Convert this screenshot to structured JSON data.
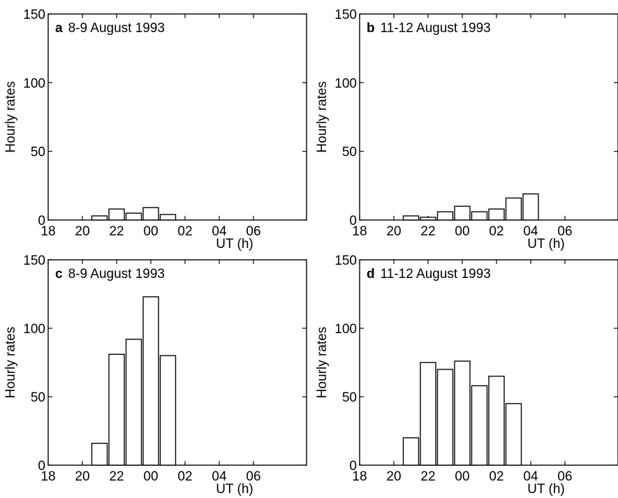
{
  "chart_data": [
    {
      "type": "bar",
      "panel_letter": "a",
      "title": "8-9 August 1993",
      "xlabel": "UT (h)",
      "ylabel": "Hourly rates",
      "x_ticks": [
        "18",
        "20",
        "22",
        "00",
        "02",
        "04",
        "06"
      ],
      "y_ticks": [
        "0",
        "50",
        "100",
        "150"
      ],
      "ylim": [
        0,
        150
      ],
      "categories": [
        "21",
        "22",
        "23",
        "00",
        "01"
      ],
      "values": [
        3,
        8,
        5,
        9,
        4
      ]
    },
    {
      "type": "bar",
      "panel_letter": "b",
      "title": "11-12 August 1993",
      "xlabel": "UT (h)",
      "ylabel": "Hourly rates",
      "x_ticks": [
        "18",
        "20",
        "22",
        "00",
        "02",
        "04",
        "06"
      ],
      "y_ticks": [
        "0",
        "50",
        "100",
        "150"
      ],
      "ylim": [
        0,
        150
      ],
      "categories": [
        "21",
        "22",
        "23",
        "00",
        "01",
        "02",
        "03",
        "04"
      ],
      "values": [
        3,
        2,
        6,
        10,
        6,
        8,
        16,
        19
      ]
    },
    {
      "type": "bar",
      "panel_letter": "c",
      "title": "8-9 August 1993",
      "xlabel": "UT (h)",
      "ylabel": "Hourly rates",
      "x_ticks": [
        "18",
        "20",
        "22",
        "00",
        "02",
        "04",
        "06"
      ],
      "y_ticks": [
        "0",
        "50",
        "100",
        "150"
      ],
      "ylim": [
        0,
        150
      ],
      "categories": [
        "21",
        "22",
        "23",
        "00",
        "01"
      ],
      "values": [
        16,
        81,
        92,
        123,
        80
      ]
    },
    {
      "type": "bar",
      "panel_letter": "d",
      "title": "11-12 August 1993",
      "xlabel": "UT (h)",
      "ylabel": "Hourly rates",
      "x_ticks": [
        "18",
        "20",
        "22",
        "00",
        "02",
        "04",
        "06"
      ],
      "y_ticks": [
        "0",
        "50",
        "100",
        "150"
      ],
      "ylim": [
        0,
        150
      ],
      "categories": [
        "21",
        "22",
        "23",
        "00",
        "01",
        "02",
        "03"
      ],
      "values": [
        20,
        75,
        70,
        76,
        58,
        65,
        45
      ]
    }
  ]
}
